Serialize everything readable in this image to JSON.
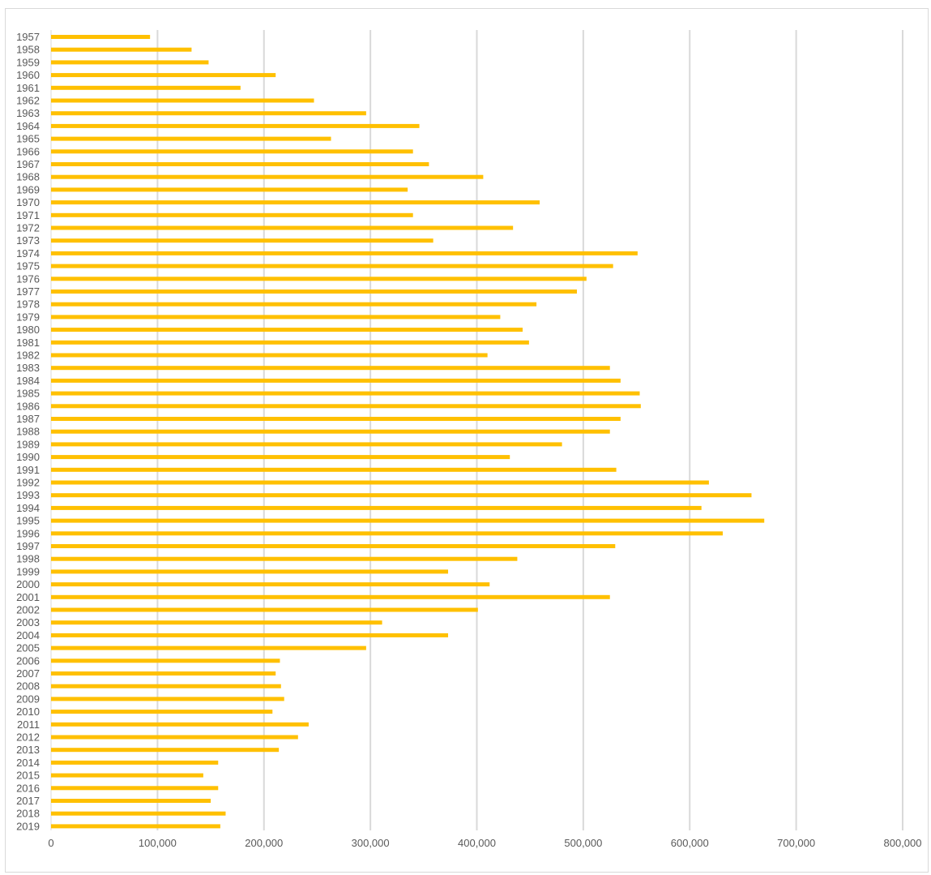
{
  "chart_data": {
    "type": "bar",
    "orientation": "horizontal",
    "title": "",
    "xlabel": "",
    "ylabel": "",
    "xlim": [
      0,
      800000
    ],
    "x_ticks": [
      0,
      100000,
      200000,
      300000,
      400000,
      500000,
      600000,
      700000,
      800000
    ],
    "x_tick_labels": [
      "0",
      "100,000",
      "200,000",
      "300,000",
      "400,000",
      "500,000",
      "600,000",
      "700,000",
      "800,000"
    ],
    "grid": true,
    "legend": "none",
    "bar_color": "#FFC000",
    "grid_color": "#d9d9d9",
    "label_color": "#595959",
    "categories": [
      "1957",
      "1958",
      "1959",
      "1960",
      "1961",
      "1962",
      "1963",
      "1964",
      "1965",
      "1966",
      "1967",
      "1968",
      "1969",
      "1970",
      "1971",
      "1972",
      "1973",
      "1974",
      "1975",
      "1976",
      "1977",
      "1978",
      "1979",
      "1980",
      "1981",
      "1982",
      "1983",
      "1984",
      "1985",
      "1986",
      "1987",
      "1988",
      "1989",
      "1990",
      "1991",
      "1992",
      "1993",
      "1994",
      "1995",
      "1996",
      "1997",
      "1998",
      "1999",
      "2000",
      "2001",
      "2002",
      "2003",
      "2004",
      "2005",
      "2006",
      "2007",
      "2008",
      "2009",
      "2010",
      "2011",
      "2012",
      "2013",
      "2014",
      "2015",
      "2016",
      "2017",
      "2018",
      "2019"
    ],
    "values": [
      93000,
      132000,
      148000,
      211000,
      178000,
      247000,
      296000,
      346000,
      263000,
      340000,
      355000,
      406000,
      335000,
      459000,
      340000,
      434000,
      359000,
      551000,
      528000,
      503000,
      494000,
      456000,
      422000,
      443000,
      449000,
      410000,
      525000,
      535000,
      553000,
      554000,
      535000,
      525000,
      480000,
      431000,
      531000,
      618000,
      658000,
      611000,
      670000,
      631000,
      530000,
      438000,
      373000,
      412000,
      525000,
      401000,
      311000,
      373000,
      296000,
      215000,
      211000,
      216000,
      219000,
      208000,
      242000,
      232000,
      214000,
      157000,
      143000,
      157000,
      150000,
      164000,
      159000
    ]
  }
}
